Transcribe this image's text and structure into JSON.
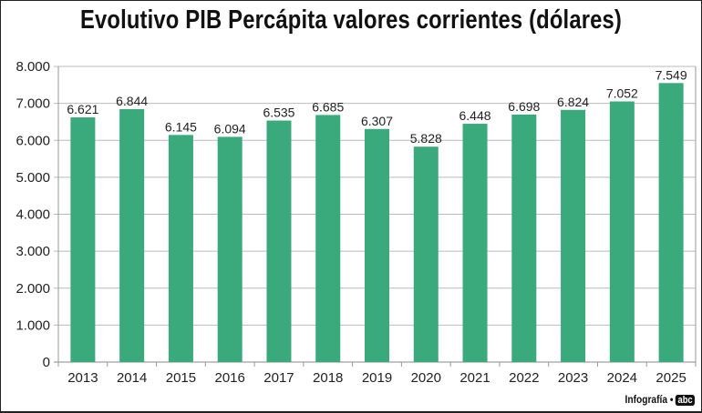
{
  "chart_data": {
    "type": "bar",
    "title": "Evolutivo PIB Percápita valores corrientes (dólares)",
    "categories": [
      "2013",
      "2014",
      "2015",
      "2016",
      "2017",
      "2018",
      "2019",
      "2020",
      "2021",
      "2022",
      "2023",
      "2024",
      "2025"
    ],
    "values": [
      6621,
      6844,
      6145,
      6094,
      6535,
      6685,
      6307,
      5828,
      6448,
      6698,
      6824,
      7052,
      7549
    ],
    "data_labels": [
      "6.621",
      "6.844",
      "6.145",
      "6.094",
      "6.535",
      "6.685",
      "6.307",
      "5.828",
      "6.448",
      "6.698",
      "6.824",
      "7.052",
      "7.549"
    ],
    "yticks": [
      "0",
      "1.000",
      "2.000",
      "3.000",
      "4.000",
      "5.000",
      "6.000",
      "7.000",
      "8.000"
    ],
    "ylim": [
      0,
      8000
    ],
    "grid": true,
    "xlabel": "",
    "ylabel": "",
    "bar_color": "#3aaa7c"
  },
  "credit": {
    "text": "Infografía •",
    "logo": "abc"
  }
}
